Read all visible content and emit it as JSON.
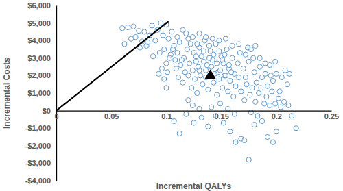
{
  "chart_data": {
    "type": "scatter",
    "x_label": "Incremental QALYs",
    "y_label": "Incremental Costs",
    "xlim": [
      0,
      0.25
    ],
    "xticks": [
      0,
      0.05,
      0.1,
      0.15,
      0.2,
      0.25
    ],
    "ylim": [
      -4000,
      6000
    ],
    "yticks": [
      {
        "value": -4000,
        "label": "-$4,000"
      },
      {
        "value": -3000,
        "label": "-$3,000"
      },
      {
        "value": -2000,
        "label": "-$2,000"
      },
      {
        "value": -1000,
        "label": "-$1,000"
      },
      {
        "value": 0,
        "label": "$0"
      },
      {
        "value": 1000,
        "label": "$1,000"
      },
      {
        "value": 2000,
        "label": "$2,000"
      },
      {
        "value": 3000,
        "label": "$3,000"
      },
      {
        "value": 4000,
        "label": "$4,000"
      },
      {
        "value": 5000,
        "label": "$5,000"
      },
      {
        "value": 6000,
        "label": "$6,000"
      }
    ],
    "grid": false,
    "series": [
      {
        "type": "scatter",
        "marker": "circle",
        "color": "#5b9bd5",
        "x": [
          0.06,
          0.065,
          0.062,
          0.07,
          0.072,
          0.075,
          0.078,
          0.08,
          0.082,
          0.085,
          0.087,
          0.09,
          0.092,
          0.095,
          0.097,
          0.1,
          0.098,
          0.094,
          0.088,
          0.083,
          0.076,
          0.068,
          0.102,
          0.105,
          0.107,
          0.11,
          0.112,
          0.115,
          0.118,
          0.12,
          0.104,
          0.108,
          0.1,
          0.096,
          0.093,
          0.098,
          0.11,
          0.113,
          0.116,
          0.119,
          0.122,
          0.125,
          0.127,
          0.13,
          0.132,
          0.135,
          0.137,
          0.14,
          0.142,
          0.145,
          0.147,
          0.15,
          0.152,
          0.155,
          0.157,
          0.16,
          0.162,
          0.165,
          0.167,
          0.17,
          0.172,
          0.175,
          0.177,
          0.18,
          0.182,
          0.185,
          0.187,
          0.19,
          0.192,
          0.195,
          0.197,
          0.2,
          0.203,
          0.205,
          0.208,
          0.21,
          0.212,
          0.115,
          0.12,
          0.123,
          0.126,
          0.128,
          0.13,
          0.133,
          0.136,
          0.138,
          0.141,
          0.143,
          0.146,
          0.148,
          0.151,
          0.153,
          0.156,
          0.158,
          0.161,
          0.163,
          0.166,
          0.168,
          0.171,
          0.173,
          0.176,
          0.178,
          0.181,
          0.184,
          0.186,
          0.189,
          0.191,
          0.194,
          0.196,
          0.199,
          0.202,
          0.204,
          0.207,
          0.211,
          0.214,
          0.218,
          0.107,
          0.112,
          0.118,
          0.125,
          0.132,
          0.138,
          0.145,
          0.152,
          0.158,
          0.163,
          0.168,
          0.171,
          0.175,
          0.18,
          0.187,
          0.192,
          0.197,
          0.2,
          0.183,
          0.162,
          0.141,
          0.12,
          0.13,
          0.124,
          0.149,
          0.156,
          0.177,
          0.121,
          0.124,
          0.127,
          0.129,
          0.131,
          0.134,
          0.136,
          0.139,
          0.141,
          0.144,
          0.146,
          0.149,
          0.151,
          0.154,
          0.157,
          0.159,
          0.117,
          0.114,
          0.109,
          0.106,
          0.103,
          0.101,
          0.111,
          0.134,
          0.139,
          0.143,
          0.148,
          0.153,
          0.128,
          0.124,
          0.13,
          0.136,
          0.142,
          0.148,
          0.154,
          0.16,
          0.166,
          0.172,
          0.179,
          0.185,
          0.19,
          0.194,
          0.199,
          0.174,
          0.181,
          0.1
        ],
        "values": [
          4700,
          4750,
          3800,
          4800,
          4200,
          4550,
          3950,
          4500,
          3700,
          4300,
          4850,
          4000,
          4600,
          5000,
          4300,
          4900,
          3500,
          3300,
          3100,
          3900,
          3600,
          4100,
          4100,
          4500,
          3700,
          4200,
          3900,
          4600,
          4400,
          4100,
          3200,
          2900,
          2700,
          2400,
          2100,
          1800,
          3300,
          2600,
          3000,
          3500,
          3800,
          3300,
          2800,
          3600,
          3100,
          4000,
          2600,
          3400,
          2900,
          3800,
          2200,
          3100,
          2700,
          3500,
          2400,
          3000,
          2100,
          2700,
          3300,
          2400,
          1900,
          2800,
          3500,
          2200,
          1600,
          2500,
          1900,
          2100,
          1400,
          2000,
          1700,
          2100,
          1100,
          1900,
          2300,
          1500,
          2100,
          1600,
          2000,
          1300,
          1800,
          1000,
          2300,
          1500,
          1900,
          1200,
          2000,
          1600,
          900,
          1800,
          1300,
          2000,
          1100,
          1700,
          800,
          1400,
          1900,
          1100,
          600,
          1500,
          900,
          1300,
          500,
          1000,
          1300,
          400,
          800,
          300,
          1100,
          400,
          700,
          200,
          500,
          300,
          -300,
          -1000,
          -600,
          -1300,
          -200,
          -700,
          -400,
          -900,
          -300,
          -700,
          -1200,
          -1800,
          -1600,
          -1700,
          -2800,
          -800,
          -600,
          -1500,
          -1800,
          -1200,
          -300,
          -200,
          200,
          600,
          100,
          300,
          400,
          100,
          -100,
          2700,
          2300,
          3100,
          2500,
          2000,
          2800,
          2300,
          3000,
          2500,
          2100,
          2700,
          2300,
          2900,
          2000,
          2600,
          2200,
          2200,
          2900,
          2400,
          3500,
          3000,
          2200,
          1900,
          3400,
          3700,
          3200,
          3400,
          3200,
          3800,
          4200,
          4400,
          4200,
          4100,
          4000,
          4100,
          3700,
          3800,
          3200,
          3000,
          3000,
          2700,
          2600,
          2800,
          3600,
          3700,
          1300
        ]
      },
      {
        "type": "line",
        "line_style": "solid",
        "color": "#000000",
        "x": [
          0,
          0.102
        ],
        "values": [
          0,
          5100
        ]
      },
      {
        "type": "scatter",
        "marker": "triangle",
        "color": "#000000",
        "x": [
          0.14
        ],
        "values": [
          2000
        ]
      }
    ]
  }
}
